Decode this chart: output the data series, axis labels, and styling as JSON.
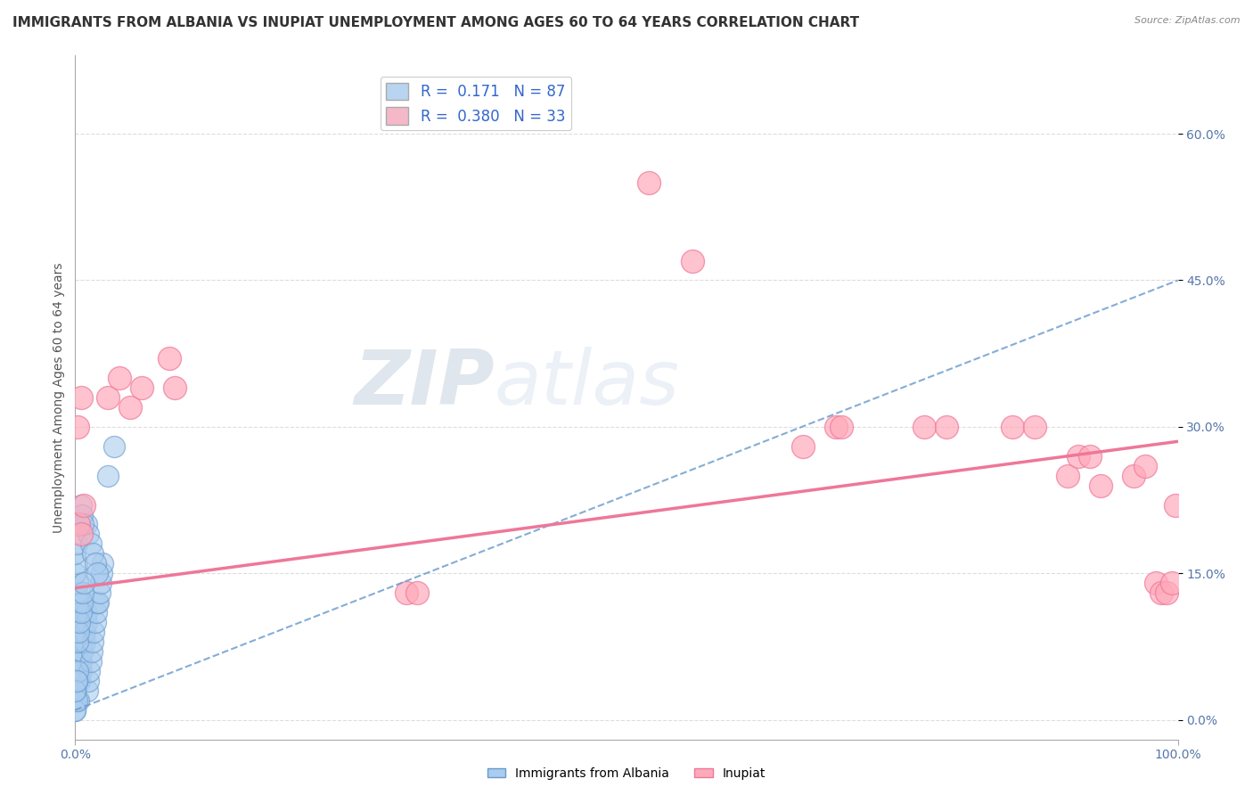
{
  "title": "IMMIGRANTS FROM ALBANIA VS INUPIAT UNEMPLOYMENT AMONG AGES 60 TO 64 YEARS CORRELATION CHART",
  "source": "Source: ZipAtlas.com",
  "ylabel": "Unemployment Among Ages 60 to 64 years",
  "xlim": [
    0,
    1.0
  ],
  "ylim": [
    -0.02,
    0.68
  ],
  "ytick_positions": [
    0.0,
    0.15,
    0.3,
    0.45,
    0.6
  ],
  "ytick_labels": [
    "0.0%",
    "15.0%",
    "30.0%",
    "45.0%",
    "60.0%"
  ],
  "xtick_positions": [
    0.0,
    1.0
  ],
  "xtick_labels": [
    "0.0%",
    "100.0%"
  ],
  "watermark_zip": "ZIP",
  "watermark_atlas": "atlas",
  "legend_entries": [
    {
      "label": "Immigrants from Albania",
      "R": "0.171",
      "N": "87",
      "color": "#b8d4f0"
    },
    {
      "label": "Inupiat",
      "R": "0.380",
      "N": "33",
      "color": "#f5b8c8"
    }
  ],
  "blue_scatter_x": [
    0.0,
    0.0,
    0.0,
    0.0,
    0.0,
    0.0,
    0.0,
    0.0,
    0.0,
    0.0,
    0.001,
    0.001,
    0.001,
    0.001,
    0.001,
    0.001,
    0.002,
    0.002,
    0.002,
    0.002,
    0.003,
    0.003,
    0.003,
    0.003,
    0.004,
    0.004,
    0.004,
    0.004,
    0.005,
    0.005,
    0.006,
    0.006,
    0.007,
    0.007,
    0.008,
    0.008,
    0.009,
    0.009,
    0.01,
    0.01,
    0.011,
    0.012,
    0.013,
    0.014,
    0.015,
    0.016,
    0.017,
    0.018,
    0.019,
    0.02,
    0.001,
    0.002,
    0.003,
    0.0,
    0.001,
    0.002,
    0.0,
    0.001,
    0.0,
    0.001,
    0.0,
    0.001,
    0.0,
    0.001,
    0.021,
    0.022,
    0.023,
    0.024,
    0.025,
    0.01,
    0.012,
    0.014,
    0.016,
    0.018,
    0.02,
    0.005,
    0.006,
    0.007,
    0.03,
    0.035,
    0.002,
    0.003,
    0.004,
    0.005,
    0.006,
    0.007,
    0.008
  ],
  "blue_scatter_y": [
    0.05,
    0.04,
    0.03,
    0.06,
    0.07,
    0.08,
    0.09,
    0.1,
    0.02,
    0.01,
    0.05,
    0.06,
    0.04,
    0.05,
    0.06,
    0.04,
    0.05,
    0.06,
    0.04,
    0.05,
    0.06,
    0.04,
    0.05,
    0.06,
    0.04,
    0.05,
    0.06,
    0.04,
    0.05,
    0.06,
    0.07,
    0.08,
    0.09,
    0.1,
    0.11,
    0.12,
    0.08,
    0.09,
    0.1,
    0.11,
    0.03,
    0.04,
    0.05,
    0.06,
    0.07,
    0.08,
    0.09,
    0.1,
    0.11,
    0.12,
    0.13,
    0.14,
    0.02,
    0.03,
    0.04,
    0.05,
    0.01,
    0.02,
    0.03,
    0.04,
    0.15,
    0.16,
    0.17,
    0.18,
    0.12,
    0.13,
    0.14,
    0.15,
    0.16,
    0.2,
    0.19,
    0.18,
    0.17,
    0.16,
    0.15,
    0.22,
    0.21,
    0.2,
    0.25,
    0.28,
    0.08,
    0.09,
    0.1,
    0.11,
    0.12,
    0.13,
    0.14
  ],
  "pink_scatter_x": [
    0.002,
    0.003,
    0.005,
    0.005,
    0.008,
    0.03,
    0.04,
    0.05,
    0.06,
    0.085,
    0.09,
    0.3,
    0.31,
    0.52,
    0.56,
    0.66,
    0.69,
    0.695,
    0.77,
    0.79,
    0.85,
    0.87,
    0.9,
    0.91,
    0.92,
    0.93,
    0.96,
    0.97,
    0.98,
    0.985,
    0.99,
    0.995,
    0.998
  ],
  "pink_scatter_y": [
    0.3,
    0.2,
    0.19,
    0.33,
    0.22,
    0.33,
    0.35,
    0.32,
    0.34,
    0.37,
    0.34,
    0.13,
    0.13,
    0.55,
    0.47,
    0.28,
    0.3,
    0.3,
    0.3,
    0.3,
    0.3,
    0.3,
    0.25,
    0.27,
    0.27,
    0.24,
    0.25,
    0.26,
    0.14,
    0.13,
    0.13,
    0.14,
    0.22
  ],
  "blue_line_x": [
    0.0,
    1.0
  ],
  "blue_line_y_intercept": 0.01,
  "blue_line_slope": 0.44,
  "pink_line_x": [
    0.0,
    1.0
  ],
  "pink_line_y_intercept": 0.135,
  "pink_line_slope": 0.15,
  "bg_color": "#ffffff",
  "grid_color": "#dddddd",
  "blue_color": "#6699cc",
  "pink_color": "#ee7799",
  "blue_fill": "#aaccee",
  "pink_fill": "#ffaabb",
  "title_fontsize": 11,
  "axis_label_fontsize": 10,
  "tick_fontsize": 10,
  "ylabel_color": "#555555",
  "tick_color": "#5577aa"
}
